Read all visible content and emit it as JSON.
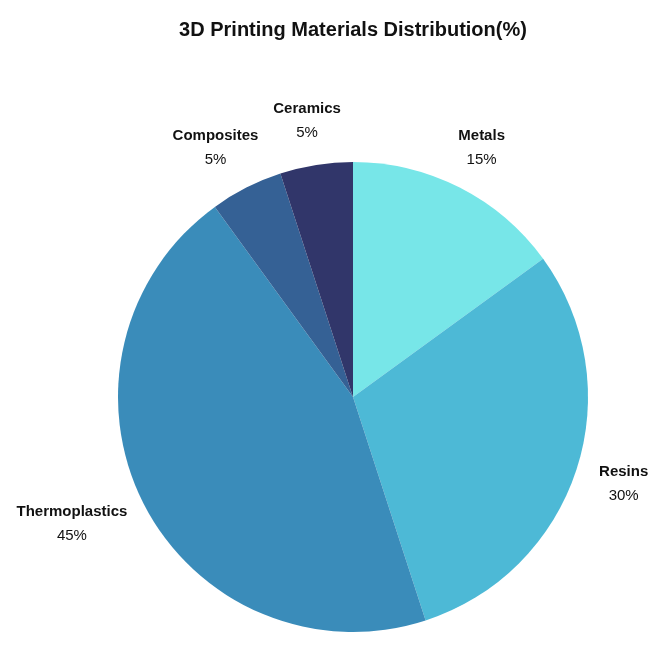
{
  "chart_data": {
    "type": "pie",
    "title": "3D Printing Materials Distribution(%)",
    "categories": [
      "Metals",
      "Resins",
      "Thermoplastics",
      "Composites",
      "Ceramics"
    ],
    "values": [
      15,
      30,
      45,
      5,
      5
    ],
    "value_labels": [
      "15%",
      "30%",
      "45%",
      "5%",
      "5%"
    ],
    "colors": [
      "#77e6e8",
      "#4db9d6",
      "#3a8cba",
      "#356195",
      "#31366a"
    ],
    "data_labels": true
  }
}
